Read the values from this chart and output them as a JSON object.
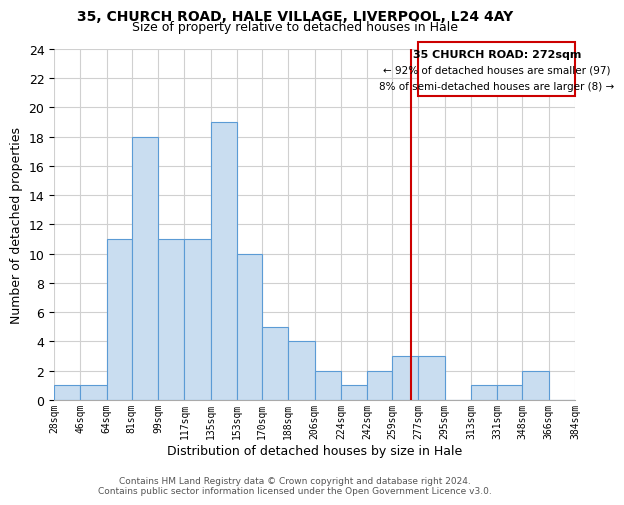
{
  "title": "35, CHURCH ROAD, HALE VILLAGE, LIVERPOOL, L24 4AY",
  "subtitle": "Size of property relative to detached houses in Hale",
  "xlabel": "Distribution of detached houses by size in Hale",
  "ylabel": "Number of detached properties",
  "bin_edges": [
    28,
    46,
    64,
    81,
    99,
    117,
    135,
    153,
    170,
    188,
    206,
    224,
    242,
    259,
    277,
    295,
    313,
    331,
    348,
    366,
    384
  ],
  "bar_heights": [
    1,
    1,
    11,
    18,
    11,
    11,
    19,
    10,
    5,
    4,
    2,
    1,
    2,
    3,
    3,
    0,
    1,
    1,
    2,
    0
  ],
  "tick_labels": [
    "28sqm",
    "46sqm",
    "64sqm",
    "81sqm",
    "99sqm",
    "117sqm",
    "135sqm",
    "153sqm",
    "170sqm",
    "188sqm",
    "206sqm",
    "224sqm",
    "242sqm",
    "259sqm",
    "277sqm",
    "295sqm",
    "313sqm",
    "331sqm",
    "348sqm",
    "366sqm",
    "384sqm"
  ],
  "bar_color": "#c9ddf0",
  "bar_edge_color": "#5b9bd5",
  "grid_color": "#d0d0d0",
  "property_line_x": 272,
  "property_line_color": "#cc0000",
  "annotation_title": "35 CHURCH ROAD: 272sqm",
  "annotation_line1": "← 92% of detached houses are smaller (97)",
  "annotation_line2": "8% of semi-detached houses are larger (8) →",
  "ylim": [
    0,
    24
  ],
  "yticks": [
    0,
    2,
    4,
    6,
    8,
    10,
    12,
    14,
    16,
    18,
    20,
    22,
    24
  ],
  "footnote1": "Contains HM Land Registry data © Crown copyright and database right 2024.",
  "footnote2": "Contains public sector information licensed under the Open Government Licence v3.0."
}
